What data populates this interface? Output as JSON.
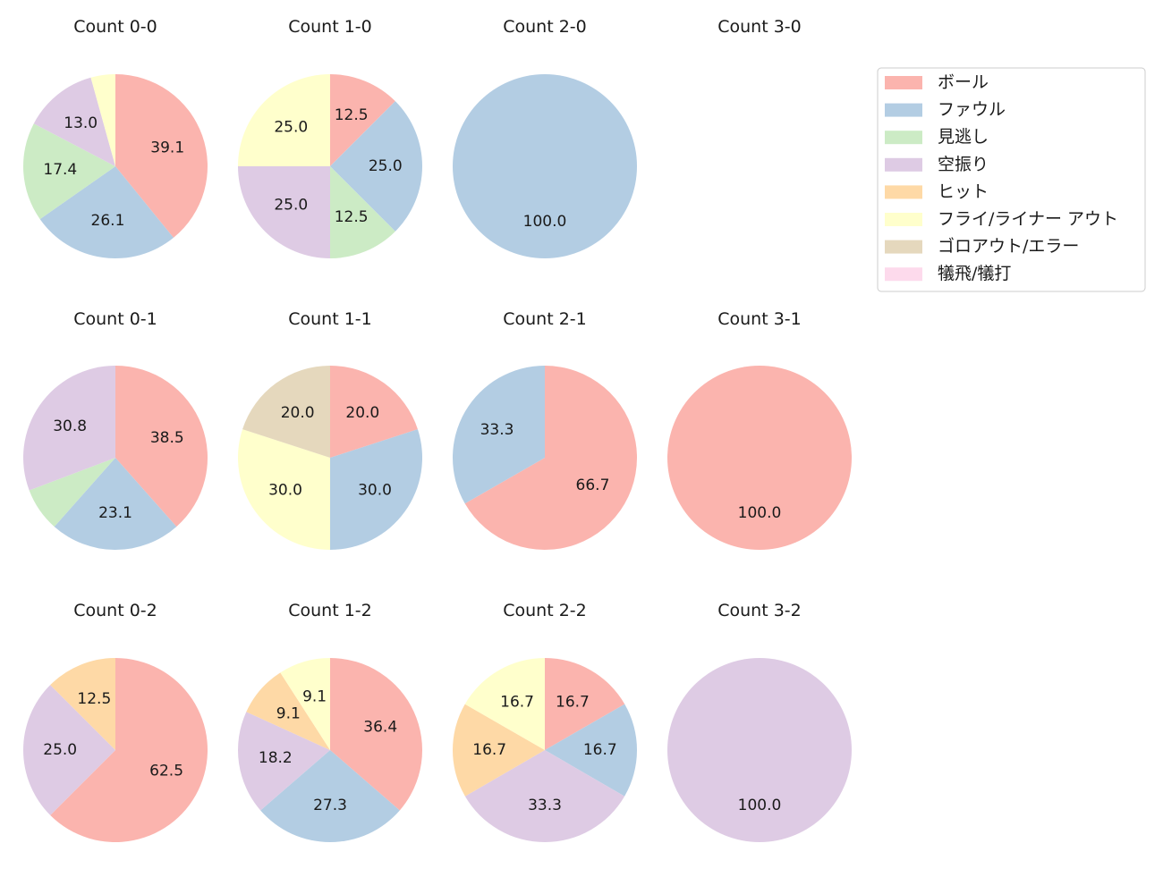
{
  "chart_data": {
    "type": "pie",
    "categories": [
      "ボール",
      "ファウル",
      "見逃し",
      "空振り",
      "ヒット",
      "フライ/ライナー アウト",
      "ゴロアウト/エラー",
      "犠飛/犠打"
    ],
    "colors": [
      "#fbb4ae",
      "#b3cde3",
      "#ccebc5",
      "#decbe4",
      "#fed9a6",
      "#ffffcc",
      "#e5d8bd",
      "#fddaec"
    ],
    "start_angle_deg": 90,
    "direction": "clockwise",
    "legend_position": "top-right",
    "pies": [
      {
        "title": "Count 0-0",
        "values": [
          39.1,
          26.1,
          17.4,
          13.0,
          0,
          4.3,
          0,
          0
        ],
        "labels": [
          "39.1",
          "26.1",
          "17.4",
          "13.0",
          "",
          "",
          "",
          ""
        ]
      },
      {
        "title": "Count 1-0",
        "values": [
          12.5,
          25.0,
          12.5,
          25.0,
          0,
          25.0,
          0,
          0
        ],
        "labels": [
          "12.5",
          "25.0",
          "12.5",
          "25.0",
          "",
          "25.0",
          "",
          ""
        ]
      },
      {
        "title": "Count 2-0",
        "values": [
          0,
          100.0,
          0,
          0,
          0,
          0,
          0,
          0
        ],
        "labels": [
          "",
          "100.0",
          "",
          "",
          "",
          "",
          "",
          ""
        ]
      },
      {
        "title": "Count 3-0",
        "values": [
          0,
          0,
          0,
          0,
          0,
          0,
          0,
          0
        ],
        "labels": [
          "",
          "",
          "",
          "",
          "",
          "",
          "",
          ""
        ]
      },
      {
        "title": "Count 0-1",
        "values": [
          38.5,
          23.1,
          7.7,
          30.8,
          0,
          0,
          0,
          0
        ],
        "labels": [
          "38.5",
          "23.1",
          "",
          "30.8",
          "",
          "",
          "",
          ""
        ]
      },
      {
        "title": "Count 1-1",
        "values": [
          20.0,
          30.0,
          0,
          0,
          0,
          30.0,
          20.0,
          0
        ],
        "labels": [
          "20.0",
          "30.0",
          "",
          "",
          "",
          "30.0",
          "20.0",
          ""
        ]
      },
      {
        "title": "Count 2-1",
        "values": [
          66.7,
          33.3,
          0,
          0,
          0,
          0,
          0,
          0
        ],
        "labels": [
          "66.7",
          "33.3",
          "",
          "",
          "",
          "",
          "",
          ""
        ]
      },
      {
        "title": "Count 3-1",
        "values": [
          100.0,
          0,
          0,
          0,
          0,
          0,
          0,
          0
        ],
        "labels": [
          "100.0",
          "",
          "",
          "",
          "",
          "",
          "",
          ""
        ]
      },
      {
        "title": "Count 0-2",
        "values": [
          62.5,
          0,
          0,
          25.0,
          12.5,
          0,
          0,
          0
        ],
        "labels": [
          "62.5",
          "",
          "",
          "25.0",
          "12.5",
          "",
          "",
          ""
        ]
      },
      {
        "title": "Count 1-2",
        "values": [
          36.4,
          27.3,
          0,
          18.2,
          9.1,
          9.1,
          0,
          0
        ],
        "labels": [
          "36.4",
          "27.3",
          "",
          "18.2",
          "9.1",
          "9.1",
          "",
          ""
        ]
      },
      {
        "title": "Count 2-2",
        "values": [
          16.7,
          16.7,
          0,
          33.3,
          16.7,
          16.7,
          0,
          0
        ],
        "labels": [
          "16.7",
          "16.7",
          "",
          "33.3",
          "16.7",
          "16.7",
          "",
          ""
        ]
      },
      {
        "title": "Count 3-2",
        "values": [
          0,
          0,
          0,
          100.0,
          0,
          0,
          0,
          0
        ],
        "labels": [
          "",
          "",
          "",
          "100.0",
          "",
          "",
          "",
          ""
        ]
      }
    ]
  }
}
